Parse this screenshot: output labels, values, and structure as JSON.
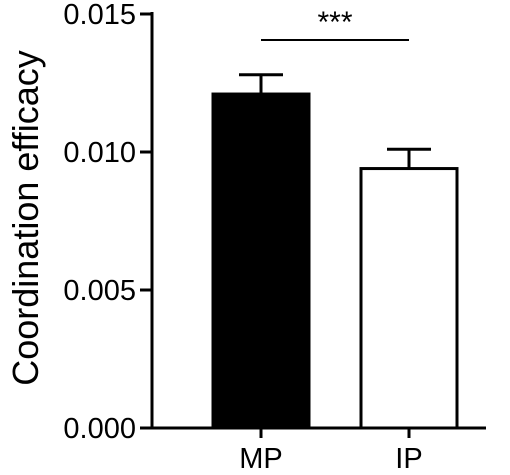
{
  "chart_data": {
    "type": "bar",
    "title": "",
    "xlabel": "",
    "ylabel": "Coordination efficacy",
    "categories": [
      "MP",
      "IP"
    ],
    "values": [
      0.0121,
      0.0094
    ],
    "errors": [
      0.0007,
      0.0007
    ],
    "bar_colors": [
      "#000000",
      "#ffffff"
    ],
    "ylim": [
      0,
      0.015
    ],
    "yticks": [
      "0.000",
      "0.005",
      "0.010",
      "0.015"
    ],
    "significance": {
      "label": "***",
      "between": [
        "MP",
        "IP"
      ]
    },
    "grid": false,
    "legend": "none"
  }
}
